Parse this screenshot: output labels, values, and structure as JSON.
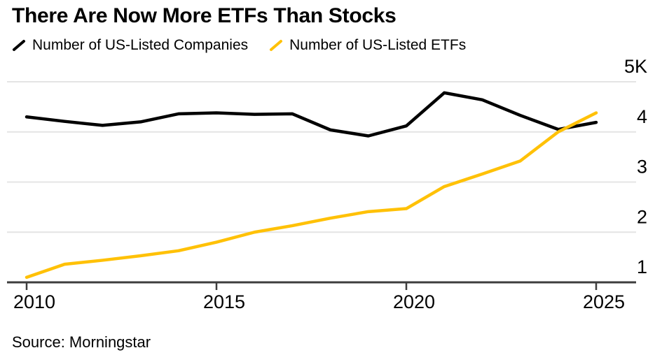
{
  "title": "There Are Now More ETFs Than Stocks",
  "legend": [
    {
      "label": "Number of US-Listed Companies",
      "color": "#000000",
      "icon": "line-swatch-icon"
    },
    {
      "label": "Number of US-Listed ETFs",
      "color": "#FFC107",
      "icon": "line-swatch-icon"
    }
  ],
  "source": "Source: Morningstar",
  "colors": {
    "companies_line": "#000000",
    "etfs_line": "#FFC107",
    "grid": "#E4E4E4",
    "axis": "#3D3D3D",
    "text": "#000000",
    "background": "#FFFFFF"
  },
  "chart_data": {
    "type": "line",
    "title": "There Are Now More ETFs Than Stocks",
    "x": [
      2010,
      2011,
      2012,
      2013,
      2014,
      2015,
      2016,
      2017,
      2018,
      2019,
      2020,
      2021,
      2022,
      2023,
      2024,
      2025
    ],
    "series": [
      {
        "name": "Number of US-Listed Companies",
        "color": "#000000",
        "values": [
          4300,
          4210,
          4130,
          4200,
          4360,
          4380,
          4350,
          4360,
          4040,
          3920,
          4120,
          4780,
          4640,
          4330,
          4050,
          4190
        ]
      },
      {
        "name": "Number of US-Listed ETFs",
        "color": "#FFC107",
        "values": [
          1100,
          1360,
          1440,
          1530,
          1630,
          1800,
          2000,
          2130,
          2280,
          2410,
          2470,
          2910,
          3160,
          3420,
          4000,
          4380
        ]
      }
    ],
    "xlabel": "",
    "ylabel": "",
    "ylim": [
      1000,
      5000
    ],
    "yticks": [
      {
        "value": 1000,
        "label": "1"
      },
      {
        "value": 2000,
        "label": "2"
      },
      {
        "value": 3000,
        "label": "3"
      },
      {
        "value": 4000,
        "label": "4"
      },
      {
        "value": 5000,
        "label": "5K"
      }
    ],
    "xticks": [
      {
        "value": 2010,
        "label": "2010"
      },
      {
        "value": 2015,
        "label": "2015"
      },
      {
        "value": 2020,
        "label": "2020"
      },
      {
        "value": 2025,
        "label": "2025"
      }
    ],
    "grid": "horizontal",
    "legend_position": "top-left",
    "y_axis_side": "right"
  }
}
